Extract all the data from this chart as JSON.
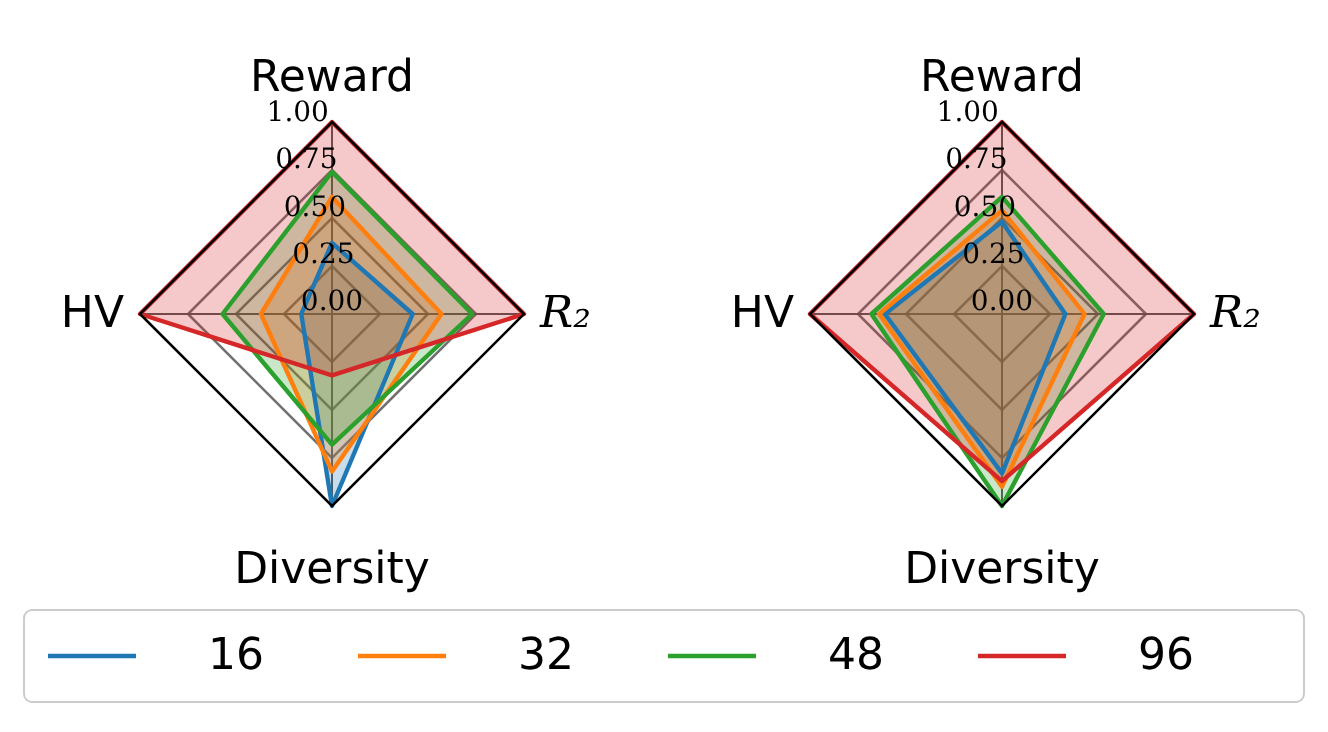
{
  "chart_data": [
    {
      "type": "radar",
      "categories": [
        "Reward",
        "R₂",
        "Diversity",
        "HV"
      ],
      "ylim": [
        0,
        1
      ],
      "yticks": [
        {
          "value": 0,
          "label": "0.00"
        },
        {
          "value": 0.25,
          "label": "0.25"
        },
        {
          "value": 0.5,
          "label": "0.50"
        },
        {
          "value": 0.75,
          "label": "0.75"
        },
        {
          "value": 1,
          "label": "1.00"
        }
      ],
      "grid": true,
      "legend": "bottom",
      "series": [
        {
          "name": "16",
          "color": "#1f77b4",
          "values": [
            0.37,
            0.42,
            1.0,
            0.16
          ]
        },
        {
          "name": "32",
          "color": "#ff7f0e",
          "values": [
            0.61,
            0.57,
            0.82,
            0.37
          ]
        },
        {
          "name": "48",
          "color": "#2ca02c",
          "values": [
            0.74,
            0.73,
            0.68,
            0.57
          ]
        },
        {
          "name": "96",
          "color": "#d62728",
          "values": [
            1.0,
            1.0,
            0.32,
            1.0
          ]
        }
      ]
    },
    {
      "type": "radar",
      "categories": [
        "Reward",
        "R₂",
        "Diversity",
        "HV"
      ],
      "ylim": [
        0,
        1
      ],
      "yticks": [
        {
          "value": 0,
          "label": "0.00"
        },
        {
          "value": 0.25,
          "label": "0.25"
        },
        {
          "value": 0.5,
          "label": "0.50"
        },
        {
          "value": 0.75,
          "label": "0.75"
        },
        {
          "value": 1,
          "label": "1.00"
        }
      ],
      "grid": true,
      "legend": "bottom",
      "series": [
        {
          "name": "16",
          "color": "#1f77b4",
          "values": [
            0.48,
            0.33,
            0.83,
            0.61
          ]
        },
        {
          "name": "32",
          "color": "#ff7f0e",
          "values": [
            0.54,
            0.43,
            0.9,
            0.64
          ]
        },
        {
          "name": "48",
          "color": "#2ca02c",
          "values": [
            0.61,
            0.53,
            1.0,
            0.68
          ]
        },
        {
          "name": "96",
          "color": "#d62728",
          "values": [
            1.0,
            1.0,
            0.87,
            1.0
          ]
        }
      ]
    }
  ]
}
